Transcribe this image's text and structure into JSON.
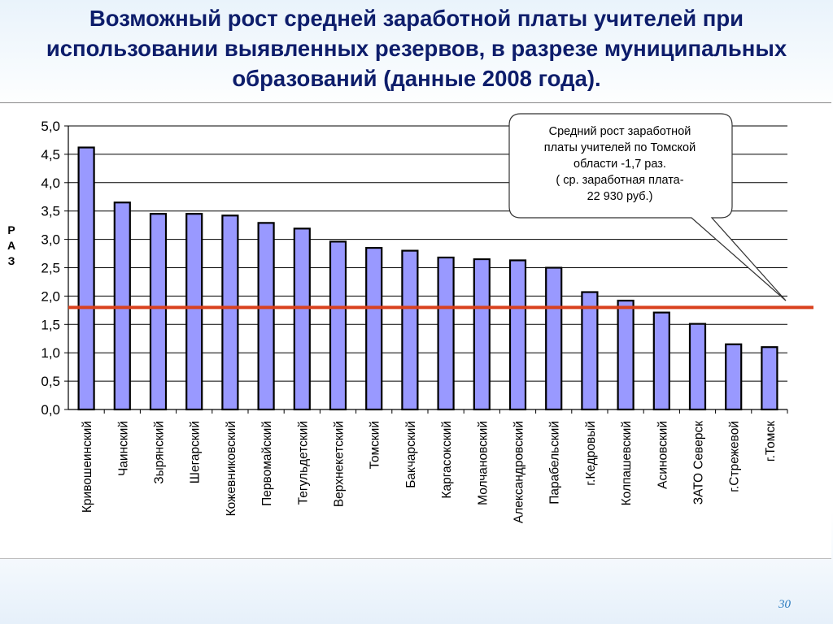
{
  "slide": {
    "title": "Возможный рост средней заработной платы учителей при использовании выявленных резервов, в разрезе муниципальных образований (данные 2008 года).",
    "page_number": "30"
  },
  "callout": {
    "text": "Средний рост заработной\nплаты учителей по Томской\nобласти -1,7 раз.\n( ср. заработная плата-\n22 930 руб.)"
  },
  "chart_data": {
    "type": "bar",
    "title": "",
    "xlabel": "",
    "ylabel": "Р\nА\nЗ",
    "ylim": [
      0,
      5
    ],
    "y_ticks": [
      "0,0",
      "0,5",
      "1,0",
      "1,5",
      "2,0",
      "2,5",
      "3,0",
      "3,5",
      "4,0",
      "4,5",
      "5,0"
    ],
    "grid": true,
    "categories": [
      "Кривошеинский",
      "Чаинский",
      "Зырянский",
      "Шегарский",
      "Кожевниковский",
      "Первомайский",
      "Тегульдетский",
      "Верхнекетский",
      "Томский",
      "Бакчарский",
      "Каргасокский",
      "Молчановский",
      "Александровский",
      "Парабельский",
      "г.Кедровый",
      "Колпашевский",
      "Асиновский",
      "ЗАТО Северск",
      "г.Стрежевой",
      "г.Томск"
    ],
    "values": [
      4.62,
      3.65,
      3.45,
      3.45,
      3.42,
      3.29,
      3.19,
      2.96,
      2.85,
      2.8,
      2.68,
      2.65,
      2.63,
      2.5,
      2.07,
      1.92,
      1.71,
      1.51,
      1.15,
      1.1
    ],
    "reference_line": 1.8,
    "colors": {
      "bar_fill": "#9999ff",
      "bar_stroke": "#000000",
      "reference_line": "#d9411e",
      "grid": "#000000",
      "title": "#0d1d6b"
    }
  }
}
